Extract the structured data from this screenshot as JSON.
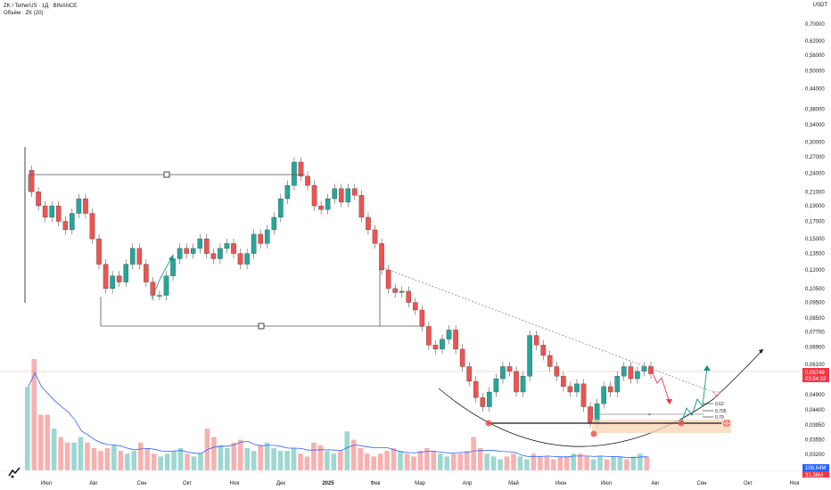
{
  "header": {
    "symbol_line": "ZK / TetherUS · 1Д · BINANCE",
    "volume_line": "Объём · ZK (20)",
    "quote_currency": "USDT"
  },
  "chart_data": {
    "type": "candlestick",
    "price_scale": "log",
    "ylim": [
      0.0285,
      0.79
    ],
    "y_ticks": [
      "0,70000",
      "0,62000",
      "0,56000",
      "0,50000",
      "0,44000",
      "0,38000",
      "0,34000",
      "0,30000",
      "0,27000",
      "0,24000",
      "0,21000",
      "0,19000",
      "0,17000",
      "0,15000",
      "0,13500",
      "0,12000",
      "0,10500",
      "0,09500",
      "0,08500",
      "0,07700",
      "0,06900",
      "0,06100",
      "0,04900",
      "0,04400",
      "0,03950",
      "0,03550",
      "0,03200"
    ],
    "x_ticks": [
      "Июл",
      "Авг",
      "Сен",
      "Окт",
      "Ноя",
      "Дек",
      "2025",
      "Фев",
      "Мар",
      "Апр",
      "Май",
      "Июн",
      "Июл",
      "Авг",
      "Сен",
      "Окт",
      "Ноя"
    ],
    "current_price": "0,05749",
    "countdown": "03:54:32",
    "volume_value": "108,64M",
    "volume_ma_value": "31,36M",
    "fib_levels": [
      "0,62",
      "0,705",
      "0,79"
    ],
    "price_path": [
      [
        0,
        0.245
      ],
      [
        3,
        0.21
      ],
      [
        6,
        0.19
      ],
      [
        9,
        0.175
      ],
      [
        12,
        0.19
      ],
      [
        15,
        0.17
      ],
      [
        18,
        0.16
      ],
      [
        21,
        0.18
      ],
      [
        24,
        0.2
      ],
      [
        27,
        0.18
      ],
      [
        30,
        0.15
      ],
      [
        33,
        0.125
      ],
      [
        36,
        0.105
      ],
      [
        39,
        0.115
      ],
      [
        42,
        0.11
      ],
      [
        45,
        0.125
      ],
      [
        48,
        0.14
      ],
      [
        51,
        0.125
      ],
      [
        54,
        0.11
      ],
      [
        57,
        0.1
      ],
      [
        60,
        0.1
      ],
      [
        63,
        0.115
      ],
      [
        66,
        0.13
      ],
      [
        69,
        0.14
      ],
      [
        72,
        0.135
      ],
      [
        75,
        0.14
      ],
      [
        78,
        0.15
      ],
      [
        81,
        0.135
      ],
      [
        84,
        0.13
      ],
      [
        87,
        0.14
      ],
      [
        90,
        0.145
      ],
      [
        93,
        0.135
      ],
      [
        96,
        0.125
      ],
      [
        99,
        0.135
      ],
      [
        102,
        0.155
      ],
      [
        105,
        0.145
      ],
      [
        108,
        0.16
      ],
      [
        111,
        0.175
      ],
      [
        114,
        0.2
      ],
      [
        117,
        0.22
      ],
      [
        120,
        0.26
      ],
      [
        123,
        0.235
      ],
      [
        126,
        0.22
      ],
      [
        129,
        0.19
      ],
      [
        132,
        0.185
      ],
      [
        135,
        0.2
      ],
      [
        138,
        0.215
      ],
      [
        141,
        0.195
      ],
      [
        144,
        0.215
      ],
      [
        147,
        0.205
      ],
      [
        150,
        0.175
      ],
      [
        153,
        0.16
      ],
      [
        156,
        0.145
      ],
      [
        159,
        0.12
      ],
      [
        162,
        0.105
      ],
      [
        165,
        0.102
      ],
      [
        168,
        0.103
      ],
      [
        171,
        0.095
      ],
      [
        174,
        0.09
      ],
      [
        177,
        0.08
      ],
      [
        180,
        0.07
      ],
      [
        183,
        0.068
      ],
      [
        186,
        0.073
      ],
      [
        189,
        0.078
      ],
      [
        192,
        0.068
      ],
      [
        195,
        0.06
      ],
      [
        198,
        0.054
      ],
      [
        201,
        0.048
      ],
      [
        204,
        0.045
      ],
      [
        207,
        0.05
      ],
      [
        210,
        0.055
      ],
      [
        213,
        0.06
      ],
      [
        216,
        0.058
      ],
      [
        219,
        0.05
      ],
      [
        222,
        0.056
      ],
      [
        225,
        0.075
      ],
      [
        228,
        0.07
      ],
      [
        231,
        0.065
      ],
      [
        234,
        0.06
      ],
      [
        237,
        0.056
      ],
      [
        240,
        0.052
      ],
      [
        243,
        0.05
      ],
      [
        246,
        0.053
      ],
      [
        249,
        0.045
      ],
      [
        252,
        0.04
      ],
      [
        255,
        0.046
      ],
      [
        258,
        0.052
      ],
      [
        261,
        0.05
      ],
      [
        264,
        0.056
      ],
      [
        267,
        0.06
      ],
      [
        270,
        0.055
      ],
      [
        273,
        0.058
      ],
      [
        276,
        0.06
      ],
      [
        279,
        0.057
      ]
    ],
    "volumes": [
      3,
      4,
      2,
      2,
      1.5,
      1.2,
      1,
      1,
      1.2,
      1,
      0.8,
      0.7,
      0.8,
      0.9,
      0.7,
      0.6,
      0.7,
      1,
      0.8,
      0.6,
      0.5,
      0.6,
      0.7,
      0.8,
      0.6,
      0.5,
      0.6,
      1.5,
      1.2,
      0.9,
      0.8,
      1,
      1.1,
      0.8,
      0.7,
      0.9,
      1,
      0.8,
      0.7,
      0.7,
      0.8,
      0.6,
      0.5,
      1,
      0.9,
      0.7,
      0.6,
      0.7,
      1.4,
      1.1,
      0.8,
      0.6,
      0.5,
      0.6,
      0.7,
      0.8,
      0.7,
      0.6,
      0.5,
      0.7,
      0.8,
      0.7,
      0.6,
      0.5,
      0.6,
      0.6,
      0.7,
      1.2,
      0.8,
      0.6,
      0.5,
      0.4,
      0.5,
      0.6,
      0.5,
      0.4,
      0.6,
      0.5,
      0.5,
      0.4,
      0.5,
      0.5,
      0.6,
      0.6,
      0.5,
      0.4,
      0.5,
      0.4,
      0.5,
      0.5,
      0.4,
      0.5,
      0.6,
      0.5
    ]
  },
  "colors": {
    "up": "#26a69a",
    "down": "#ef5350",
    "trend": "#555555",
    "zone": "#f8d4b4",
    "marker": "#ef5350",
    "price_tag": "#f23645",
    "volume_tag": "#2962ff",
    "arrow_green": "#089981",
    "arrow_red": "#f23645",
    "volume_ma": "#2962ff"
  }
}
